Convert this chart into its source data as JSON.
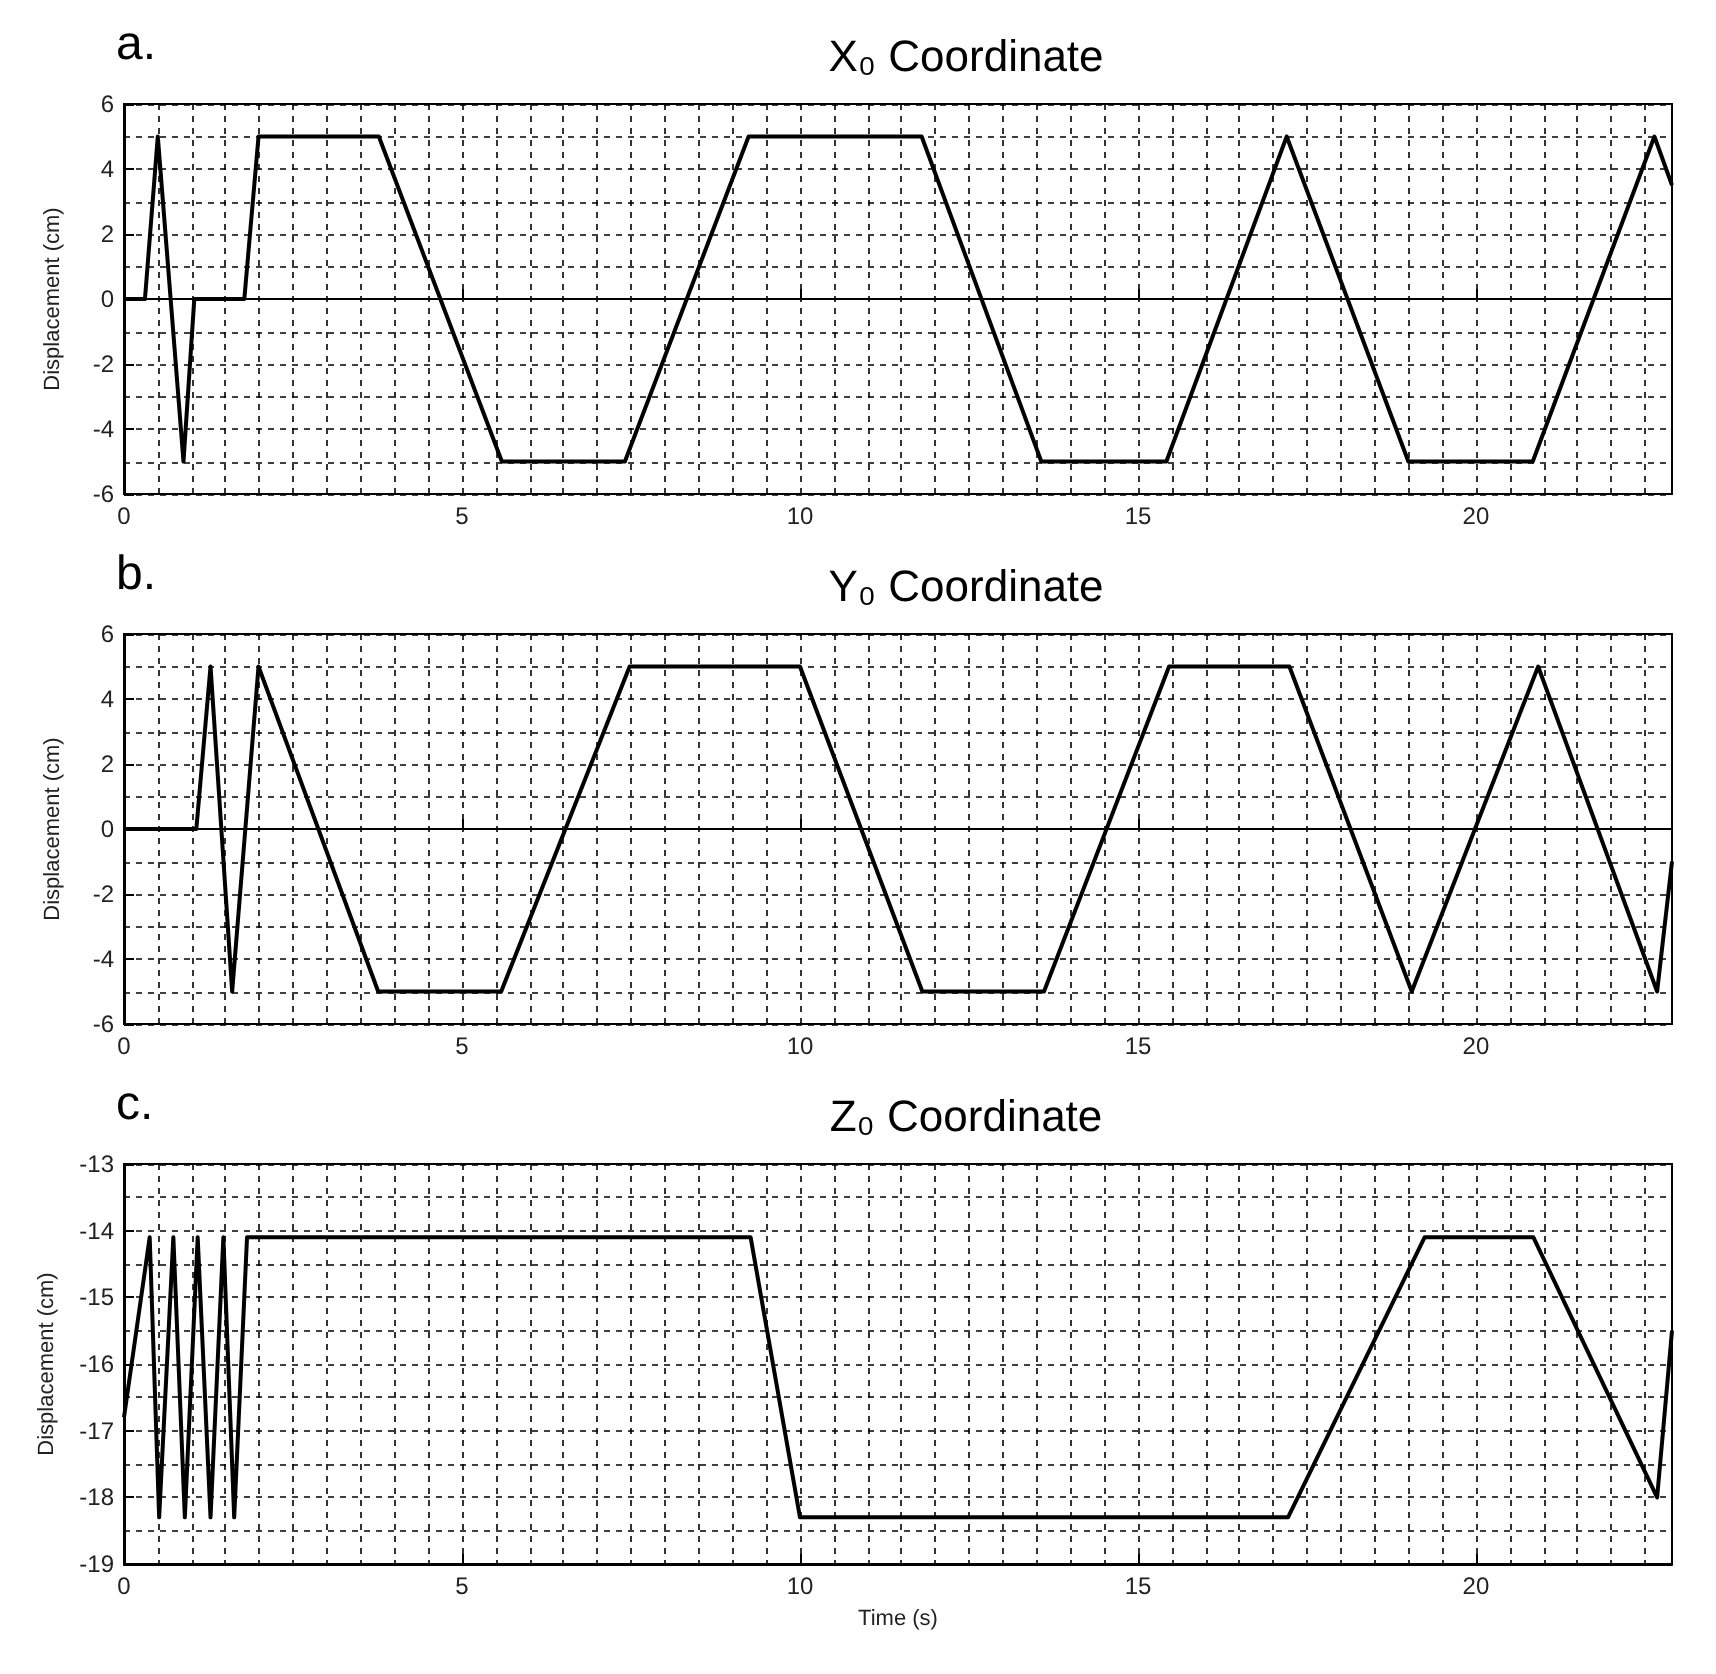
{
  "chart_data": [
    {
      "type": "line",
      "title": "X₀ Coordinate",
      "annotations": [
        "a."
      ],
      "ylabel": "Displacement (cm)",
      "xlim": [
        0,
        22.9
      ],
      "ylim": [
        -6,
        6
      ],
      "xticks": [
        0,
        5,
        10,
        15,
        20
      ],
      "yticks": [
        -6,
        -4,
        -2,
        0,
        2,
        4,
        6
      ],
      "grid": true,
      "line_style": "solid",
      "x": [
        0,
        0.31,
        0.5,
        0.88,
        1.04,
        1.78,
        1.99,
        3.77,
        5.59,
        7.41,
        9.24,
        11.8,
        13.57,
        15.42,
        17.2,
        19.0,
        20.84,
        22.64,
        22.9
      ],
      "series": [
        {
          "color": "#000000",
          "values": [
            0,
            0,
            5,
            -5,
            0,
            0,
            5,
            5,
            -5,
            -5,
            5,
            5,
            -5,
            -5,
            5,
            -5,
            -5,
            5,
            3.5
          ]
        }
      ]
    },
    {
      "type": "line",
      "title": "Y₀ Coordinate",
      "annotations": [
        "b."
      ],
      "ylabel": "Displacement (cm)",
      "xlim": [
        0,
        22.9
      ],
      "ylim": [
        -6,
        6
      ],
      "xticks": [
        0,
        5,
        10,
        15,
        20
      ],
      "yticks": [
        -6,
        -4,
        -2,
        0,
        2,
        4,
        6
      ],
      "grid": true,
      "line_style": "solid",
      "x": [
        0,
        1.07,
        1.28,
        1.6,
        1.99,
        3.76,
        5.58,
        7.48,
        10.0,
        11.81,
        13.61,
        15.46,
        17.24,
        19.05,
        20.92,
        22.68,
        22.9
      ],
      "series": [
        {
          "color": "#000000",
          "values": [
            0,
            0,
            5,
            -5,
            5,
            -5,
            -5,
            5,
            5,
            -5,
            -5,
            5,
            5,
            -5,
            5,
            -5,
            -1
          ]
        }
      ]
    },
    {
      "type": "line",
      "title": "Z₀ Coordinate",
      "annotations": [
        "c."
      ],
      "xlabel": "Time (s)",
      "ylabel": "Displacement (cm)",
      "xlim": [
        0,
        22.9
      ],
      "ylim": [
        -19,
        -13
      ],
      "xticks": [
        0,
        5,
        10,
        15,
        20
      ],
      "yticks": [
        -19,
        -18,
        -17,
        -16,
        -15,
        -14,
        -13
      ],
      "grid": true,
      "line_style": "solid",
      "x": [
        0,
        0.38,
        0.52,
        0.73,
        0.9,
        1.09,
        1.28,
        1.47,
        1.63,
        1.82,
        9.27,
        10.0,
        17.22,
        19.24,
        20.85,
        22.68,
        22.9
      ],
      "series": [
        {
          "color": "#000000",
          "values": [
            -16.8,
            -14.1,
            -18.3,
            -14.1,
            -18.3,
            -14.1,
            -18.3,
            -14.1,
            -18.3,
            -14.1,
            -14.1,
            -18.3,
            -18.3,
            -14.1,
            -14.1,
            -18.0,
            -15.5
          ]
        }
      ]
    }
  ]
}
